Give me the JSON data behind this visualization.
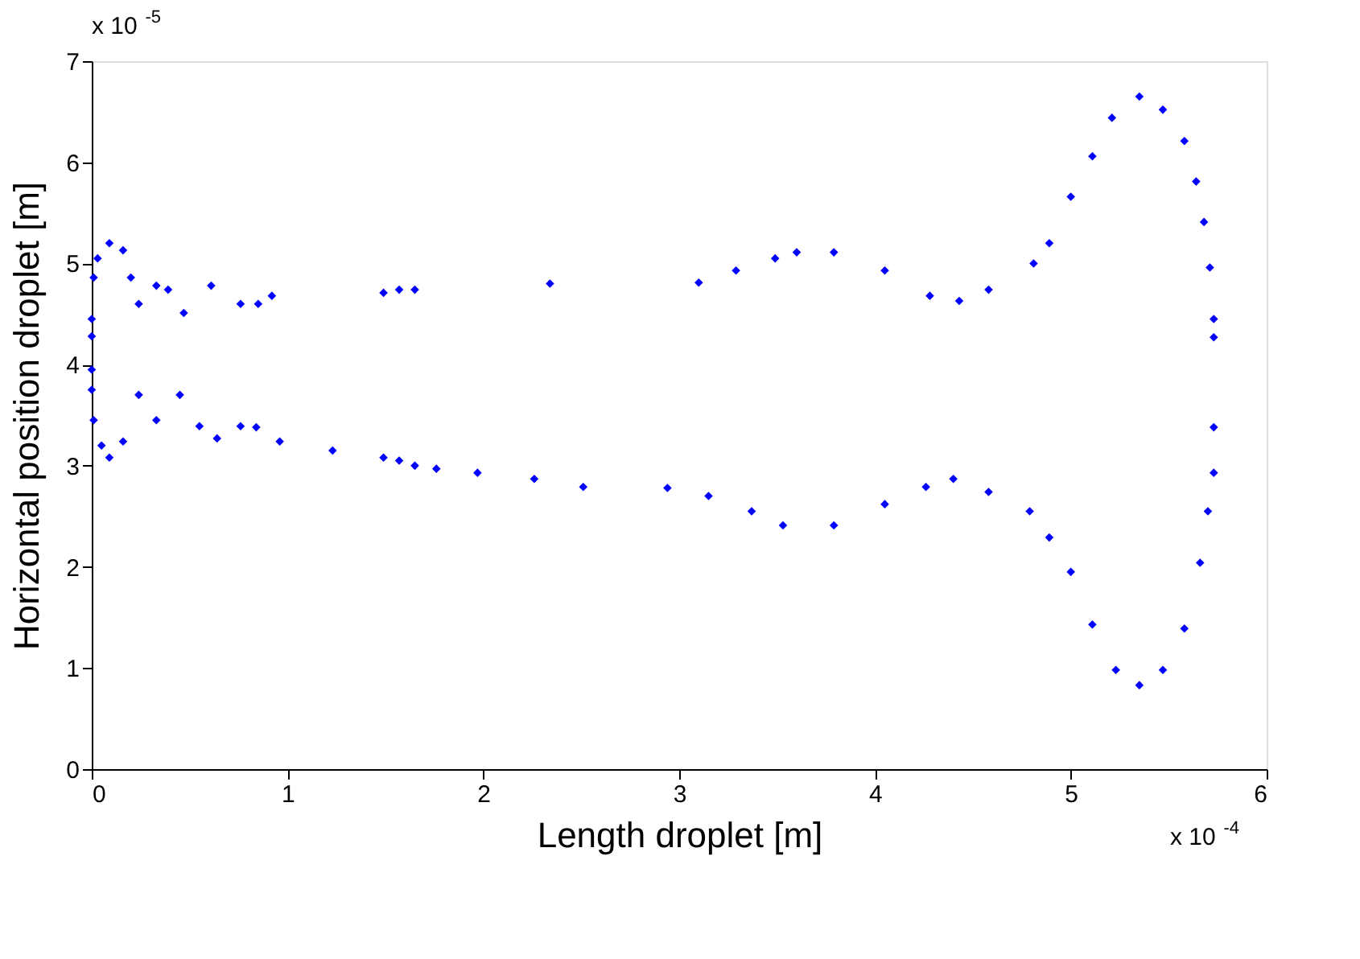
{
  "chart_data": {
    "type": "scatter",
    "xlabel": "Length droplet [m]",
    "ylabel": "Horizontal position droplet [m]",
    "xlim": [
      0,
      6
    ],
    "xticks": [
      0,
      1,
      2,
      3,
      4,
      5,
      6
    ],
    "ylim": [
      0,
      7
    ],
    "yticks": [
      0,
      1,
      2,
      3,
      4,
      5,
      6,
      7
    ],
    "grid": false,
    "legend": false,
    "marker": "diamond",
    "annotations": [
      "x 10$^{-5}$",
      "x 10$^{-4}$"
    ],
    "series": [
      {
        "color": "#0000ff",
        "x": [
          0.0,
          0.0,
          0.01,
          0.03,
          0.09,
          0.16,
          0.2,
          0.24,
          0.33,
          0.39,
          0.47,
          0.61,
          0.76,
          0.85,
          0.92,
          1.49,
          1.57,
          1.65,
          2.34,
          3.1,
          3.29,
          3.49,
          3.6,
          3.79,
          4.05,
          4.28,
          4.43,
          4.58,
          4.81,
          4.89,
          5.0,
          5.11,
          5.21,
          5.35,
          5.47,
          5.58,
          5.64,
          5.68,
          5.71,
          5.73,
          5.73
        ],
        "values": [
          4.28,
          4.45,
          4.86,
          5.05,
          5.2,
          5.13,
          4.86,
          4.6,
          4.78,
          4.74,
          4.51,
          4.78,
          4.6,
          4.6,
          4.68,
          4.71,
          4.74,
          4.74,
          4.8,
          4.81,
          4.93,
          5.05,
          5.11,
          5.11,
          4.93,
          4.68,
          4.63,
          4.74,
          5.0,
          5.2,
          5.66,
          6.06,
          6.44,
          6.65,
          6.52,
          6.21,
          5.81,
          5.41,
          4.96,
          4.45,
          4.27
        ]
      },
      {
        "color": "#0000ff",
        "x": [
          0.0,
          0.0,
          0.01,
          0.05,
          0.09,
          0.16,
          0.24,
          0.33,
          0.45,
          0.55,
          0.64,
          0.76,
          0.84,
          0.96,
          1.23,
          1.49,
          1.57,
          1.65,
          1.76,
          1.97,
          2.26,
          2.51,
          2.94,
          3.15,
          3.37,
          3.53,
          3.79,
          4.05,
          4.26,
          4.4,
          4.58,
          4.79,
          4.89,
          5.0,
          5.11,
          5.23,
          5.35,
          5.47,
          5.58,
          5.66,
          5.7,
          5.73,
          5.73
        ],
        "values": [
          3.95,
          3.75,
          3.45,
          3.2,
          3.08,
          3.24,
          3.7,
          3.45,
          3.7,
          3.39,
          3.27,
          3.39,
          3.38,
          3.24,
          3.15,
          3.08,
          3.05,
          3.0,
          2.97,
          2.93,
          2.87,
          2.79,
          2.78,
          2.7,
          2.55,
          2.41,
          2.41,
          2.62,
          2.79,
          2.87,
          2.74,
          2.55,
          2.29,
          1.95,
          1.43,
          0.98,
          0.83,
          0.98,
          1.39,
          2.04,
          2.55,
          2.93,
          3.38
        ]
      }
    ]
  }
}
